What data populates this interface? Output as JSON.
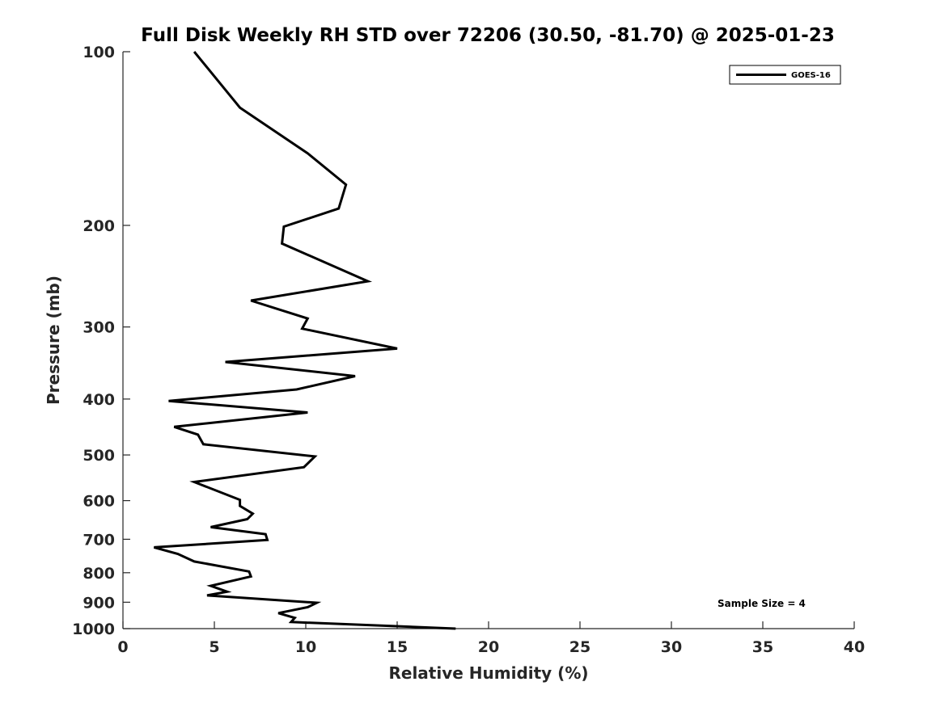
{
  "chart_data": {
    "type": "line",
    "title": "Full Disk Weekly RH STD over 72206 (30.50, -81.70) @ 2025-01-23",
    "xlabel": "Relative Humidity (%)",
    "ylabel": "Pressure (mb)",
    "xlim": [
      0,
      40
    ],
    "ylim": [
      100,
      1000
    ],
    "y_scale": "log",
    "y_reversed": true,
    "x_ticks": [
      0,
      5,
      10,
      15,
      20,
      25,
      30,
      35,
      40
    ],
    "y_ticks": [
      100,
      200,
      300,
      400,
      500,
      600,
      700,
      800,
      900,
      1000
    ],
    "grid": false,
    "legend_position": "top-right",
    "series": [
      {
        "name": "GOES-16",
        "color": "#000000",
        "points": [
          [
            3.9,
            100
          ],
          [
            6.4,
            125
          ],
          [
            10.1,
            150
          ],
          [
            12.2,
            170
          ],
          [
            11.8,
            187
          ],
          [
            8.8,
            201
          ],
          [
            8.7,
            215
          ],
          [
            13.4,
            250
          ],
          [
            7.0,
            270
          ],
          [
            10.1,
            290
          ],
          [
            9.8,
            302
          ],
          [
            15.0,
            327
          ],
          [
            5.6,
            345
          ],
          [
            12.7,
            365
          ],
          [
            9.5,
            385
          ],
          [
            2.5,
            403
          ],
          [
            10.1,
            422
          ],
          [
            2.8,
            447
          ],
          [
            4.1,
            461
          ],
          [
            4.4,
            479
          ],
          [
            10.5,
            503
          ],
          [
            9.9,
            525
          ],
          [
            3.9,
            557
          ],
          [
            6.4,
            598
          ],
          [
            6.4,
            613
          ],
          [
            7.1,
            632
          ],
          [
            6.8,
            646
          ],
          [
            4.8,
            667
          ],
          [
            7.8,
            686
          ],
          [
            7.9,
            702
          ],
          [
            1.7,
            723
          ],
          [
            3.0,
            742
          ],
          [
            3.9,
            765
          ],
          [
            6.9,
            796
          ],
          [
            7.0,
            812
          ],
          [
            4.8,
            843
          ],
          [
            5.7,
            863
          ],
          [
            4.6,
            876
          ],
          [
            10.6,
            902
          ],
          [
            10.1,
            918
          ],
          [
            8.5,
            940
          ],
          [
            9.4,
            958
          ],
          [
            9.2,
            974
          ],
          [
            18.2,
            1000
          ]
        ]
      }
    ],
    "annotations": [
      "Sample Size = 4"
    ]
  },
  "colors": {
    "axis": "#262626",
    "line": "#000000",
    "background": "#ffffff"
  }
}
